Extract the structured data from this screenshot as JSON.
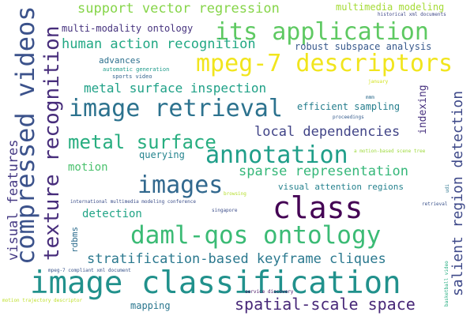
{
  "words": [
    {
      "text": "image classification",
      "color": "#21918c"
    },
    {
      "text": "daml-qos ontology",
      "color": "#3bbb75"
    },
    {
      "text": "mpeg-7 descriptors",
      "color": "#f1e51d"
    },
    {
      "text": "class",
      "color": "#440154"
    },
    {
      "text": "its application",
      "color": "#5ec962"
    },
    {
      "text": "image retrieval",
      "color": "#2c728e"
    },
    {
      "text": "compressed videos",
      "color": "#3b528b"
    },
    {
      "text": "annotation",
      "color": "#1f9e89"
    },
    {
      "text": "texture recognition",
      "color": "#472d7b"
    },
    {
      "text": "images",
      "color": "#31688e"
    },
    {
      "text": "metal surface",
      "color": "#28ae80"
    },
    {
      "text": "spatial-scale space",
      "color": "#482878"
    },
    {
      "text": "stratification-based keyframe cliques",
      "color": "#2a788e"
    },
    {
      "text": "salient region detection",
      "color": "#3e4989"
    },
    {
      "text": "sparse representation",
      "color": "#35b779"
    },
    {
      "text": "visual features",
      "color": "#443983"
    },
    {
      "text": "local dependencies",
      "color": "#414487"
    },
    {
      "text": "support vector regression",
      "color": "#86d549"
    },
    {
      "text": "human action recognition",
      "color": "#22a884"
    },
    {
      "text": "metal surface inspection",
      "color": "#1fa187"
    },
    {
      "text": "robust subspace analysis",
      "color": "#38598c"
    },
    {
      "text": "multimedia modeling",
      "color": "#a5db36"
    },
    {
      "text": "multi-modality ontology",
      "color": "#46337e"
    },
    {
      "text": "efficient sampling",
      "color": "#277f8e"
    },
    {
      "text": "visual attention regions",
      "color": "#26828e"
    },
    {
      "text": "detection",
      "color": "#20a486"
    },
    {
      "text": "motion",
      "color": "#4ac16d"
    },
    {
      "text": "querying",
      "color": "#25848e"
    },
    {
      "text": "indexing",
      "color": "#46307e"
    },
    {
      "text": "advances",
      "color": "#2d708e"
    },
    {
      "text": "mapping",
      "color": "#2a768e"
    },
    {
      "text": "rdbms",
      "color": "#2e6d8e"
    },
    {
      "text": "automatic generation",
      "color": "#1e9b8a"
    },
    {
      "text": "sports video",
      "color": "#33638d"
    },
    {
      "text": "historical xml documents",
      "color": "#3f4889"
    },
    {
      "text": "international multimedia modeling conference",
      "color": "#3c4f8a"
    },
    {
      "text": "mpeg-7 compliant xml document",
      "color": "#3a548c"
    },
    {
      "text": "service discovery",
      "color": "#471063"
    },
    {
      "text": "proceedings",
      "color": "#365c8d"
    },
    {
      "text": "a motion-based scene tree",
      "color": "#9dd93b"
    },
    {
      "text": "singapore",
      "color": "#3d4e8a"
    },
    {
      "text": "browsing",
      "color": "#b5de2b"
    },
    {
      "text": "retrieval",
      "color": "#3b528b"
    },
    {
      "text": "january",
      "color": "#d2e21b"
    },
    {
      "text": "udi",
      "color": "#2b758e"
    },
    {
      "text": "mmm",
      "color": "#2f6c8e"
    },
    {
      "text": "motion trajectory descriptor",
      "color": "#bddf26"
    },
    {
      "text": "basketball video",
      "color": "#26ad81"
    }
  ]
}
